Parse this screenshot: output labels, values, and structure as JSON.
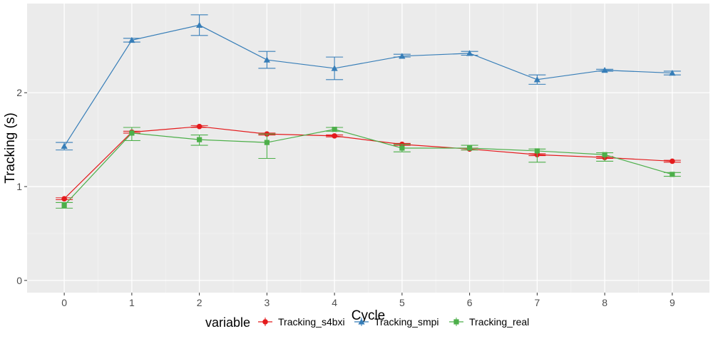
{
  "chart_data": {
    "type": "line",
    "title": "",
    "xlabel": "Cycle",
    "ylabel": "Tracking (s)",
    "x": [
      0,
      1,
      2,
      3,
      4,
      5,
      6,
      7,
      8,
      9
    ],
    "xlim": [
      -0.55,
      9.55
    ],
    "ylim": [
      -0.13,
      2.95
    ],
    "yticks": [
      0,
      1,
      2
    ],
    "ytick_labels": [
      "0",
      "1",
      "2"
    ],
    "grid": true,
    "legend": {
      "title": "variable",
      "position": "bottom"
    },
    "series": [
      {
        "name": "Tracking_s4bxi",
        "color": "#E41A1C",
        "marker": "circle",
        "values": [
          0.87,
          1.58,
          1.64,
          1.56,
          1.54,
          1.45,
          1.4,
          1.34,
          1.31,
          1.27
        ],
        "err_low": [
          0.86,
          1.57,
          1.63,
          1.55,
          1.53,
          1.44,
          1.39,
          1.33,
          1.3,
          1.26
        ],
        "err_high": [
          0.88,
          1.59,
          1.65,
          1.57,
          1.55,
          1.46,
          1.41,
          1.35,
          1.32,
          1.28
        ]
      },
      {
        "name": "Tracking_smpi",
        "color": "#377EB8",
        "marker": "triangle",
        "values": [
          1.43,
          2.56,
          2.72,
          2.35,
          2.26,
          2.39,
          2.42,
          2.14,
          2.24,
          2.21
        ],
        "err_low": [
          1.39,
          2.54,
          2.61,
          2.26,
          2.14,
          2.38,
          2.4,
          2.09,
          2.23,
          2.19
        ],
        "err_high": [
          1.47,
          2.58,
          2.83,
          2.44,
          2.38,
          2.41,
          2.44,
          2.19,
          2.25,
          2.23
        ]
      },
      {
        "name": "Tracking_real",
        "color": "#4DAF4A",
        "marker": "square",
        "values": [
          0.8,
          1.57,
          1.5,
          1.47,
          1.61,
          1.41,
          1.41,
          1.38,
          1.34,
          1.13
        ],
        "err_low": [
          0.77,
          1.49,
          1.44,
          1.3,
          1.59,
          1.37,
          1.39,
          1.26,
          1.27,
          1.11
        ],
        "err_high": [
          0.83,
          1.63,
          1.55,
          1.56,
          1.63,
          1.45,
          1.44,
          1.4,
          1.36,
          1.15
        ]
      }
    ]
  }
}
